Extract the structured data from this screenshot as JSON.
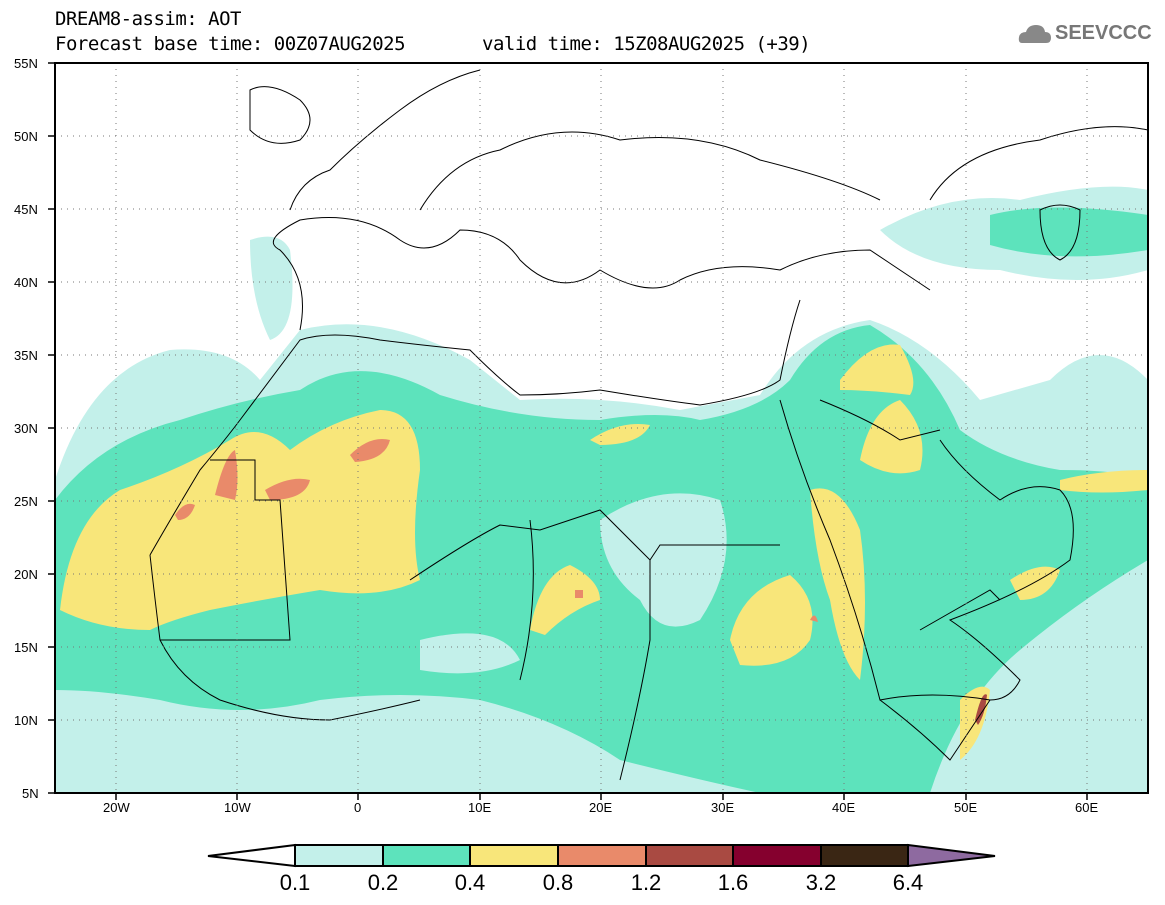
{
  "title": "DREAM8-assim: AOT",
  "base_time": "Forecast base time: 00Z07AUG2025",
  "valid_time": "valid time: 15Z08AUG2025 (+39)",
  "logo": "SEEVCCC",
  "lat_labels": [
    "55N",
    "50N",
    "45N",
    "40N",
    "35N",
    "30N",
    "25N",
    "20N",
    "15N",
    "10N",
    "5N"
  ],
  "lon_labels": [
    "20W",
    "10W",
    "0",
    "10E",
    "20E",
    "30E",
    "40E",
    "50E",
    "60E"
  ],
  "colorbar": {
    "levels": [
      "0.1",
      "0.2",
      "0.4",
      "0.8",
      "1.2",
      "1.6",
      "3.2",
      "6.4"
    ],
    "colors": [
      "#ffffff",
      "#c3f0ea",
      "#5de3bc",
      "#f8e67a",
      "#e98a6a",
      "#a94a42",
      "#85002e",
      "#3a2614",
      "#8e6aa0"
    ]
  }
}
